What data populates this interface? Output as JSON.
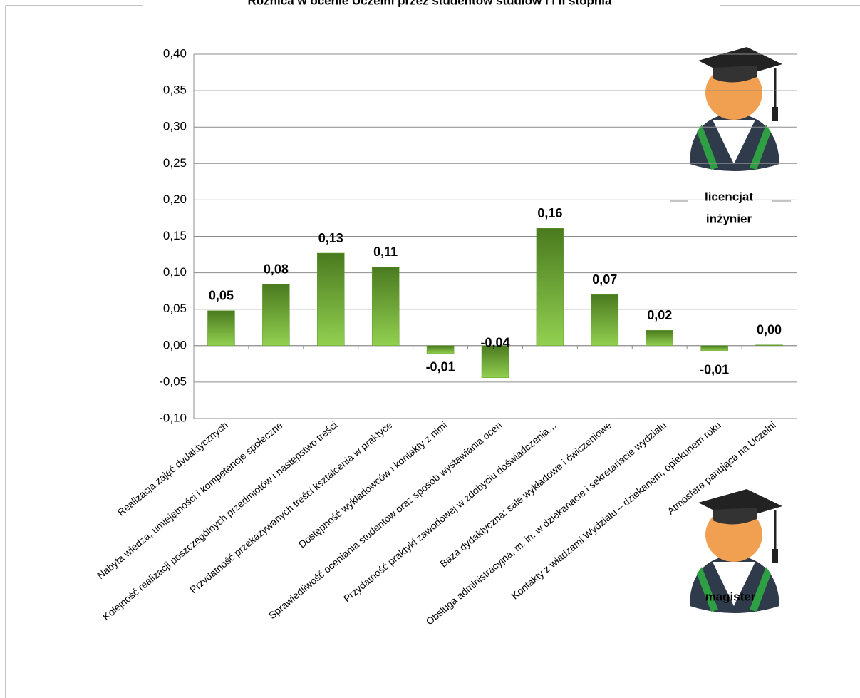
{
  "chart_data": {
    "type": "bar",
    "title": "Różnica w ocenie Uczelni przez studentów studiów I i II stopnia",
    "categories": [
      "Realizacja zajęć dydaktycznych",
      "Nabyta wiedza, umiejętności  i kompetencje społeczne",
      "Kolejność realizacji poszczególnych przedmiotów i następstwo treści",
      "Przydatność przekazywanych treści kształcenia w praktyce",
      "Dostępność wykładowców i kontakty z nimi",
      "Sprawiedliwość oceniania studentów oraz sposób wystawiania ocen",
      "Przydatność praktyki zawodowej w zdobyciu doświadczenia…",
      "Baza dydaktyczna: sale wykładowe i ćwiczeniowe",
      "Obsługa administracyjna, m. in. w dziekanacie i sekretariacie wydziału",
      "Kontakty z władzami Wydziału – dziekanem, opiekunem roku",
      "Atmosfera panująca na Uczelni"
    ],
    "values": [
      0.048,
      0.084,
      0.127,
      0.108,
      -0.011,
      -0.044,
      0.161,
      0.07,
      0.021,
      -0.007,
      0.001
    ],
    "value_labels": [
      "0,05",
      "0,08",
      "0,13",
      "0,11",
      "-0,01",
      "-0,04",
      "0,16",
      "0,07",
      "0,02",
      "-0,01",
      "0,00"
    ],
    "color": "#5f9a2c",
    "ylim": [
      -0.1,
      0.4
    ],
    "yticks": [
      {
        "value": -0.1,
        "label": "-0,10"
      },
      {
        "value": -0.05,
        "label": "-0,05"
      },
      {
        "value": 0,
        "label": "0,00"
      },
      {
        "value": 0.05,
        "label": "0,05"
      },
      {
        "value": 0.1,
        "label": "0,10"
      },
      {
        "value": 0.15,
        "label": "0,15"
      },
      {
        "value": 0.2,
        "label": "0,20"
      },
      {
        "value": 0.25,
        "label": "0,25"
      },
      {
        "value": 0.3,
        "label": "0,30"
      },
      {
        "value": 0.35,
        "label": "0,35"
      },
      {
        "value": 0.4,
        "label": "0,40"
      }
    ],
    "grid": true,
    "annotations": [
      "licencjat",
      "inżynier",
      "magister"
    ]
  }
}
